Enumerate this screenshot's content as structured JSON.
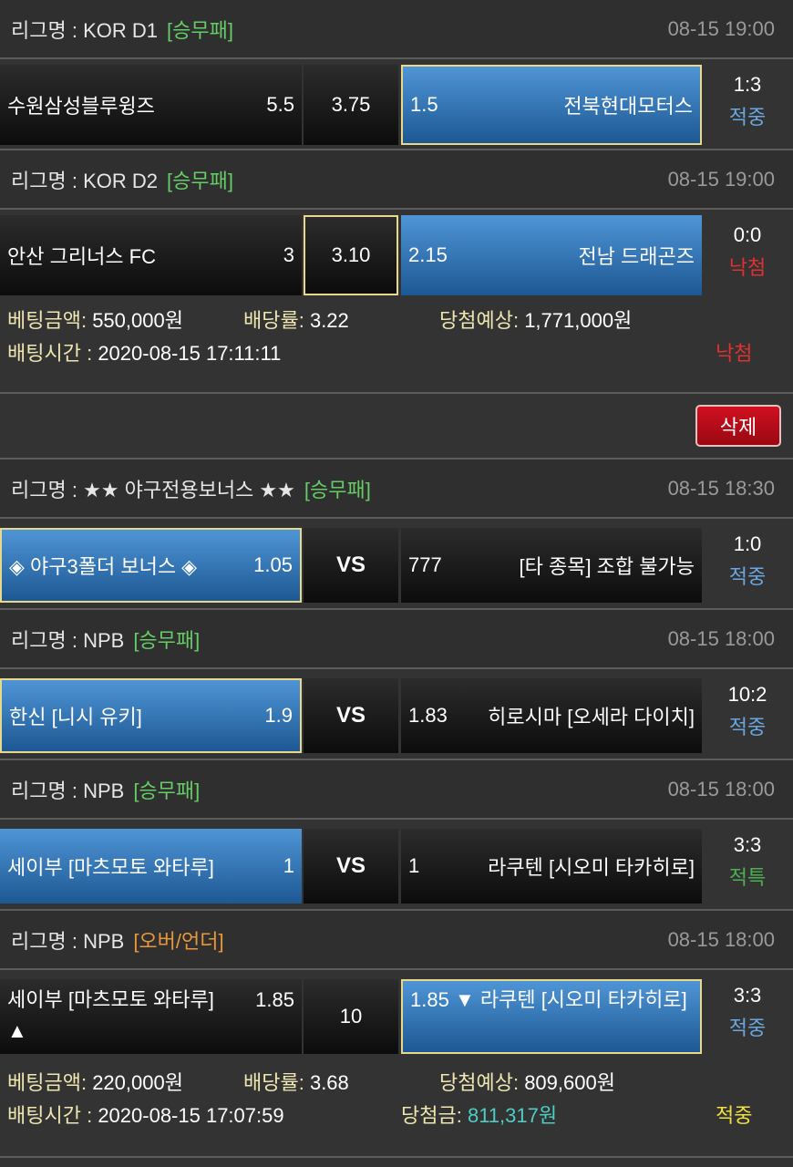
{
  "colors": {
    "bet_type": "#66cc66",
    "overunder": "#e8983a",
    "hit": "#6aa7e0",
    "miss": "#e03030",
    "special": "#4caf50",
    "win_amount": "#4ecdc4",
    "final_hit": "#f0e040"
  },
  "league_prefix": "리그명 : ",
  "slip1": {
    "games": [
      {
        "league": "KOR D1",
        "type": "[승무패]",
        "time": "08-15 19:00",
        "home": "수원삼성블루윙즈",
        "home_odds": "5.5",
        "mid": "3.75",
        "away_odds": "1.5",
        "away": "전북현대모터스",
        "score": "1:3",
        "result": "적중"
      },
      {
        "league": "KOR D2",
        "type": "[승무패]",
        "time": "08-15 19:00",
        "home": "안산 그리너스 FC",
        "home_odds": "3",
        "mid": "3.10",
        "away_odds": "2.15",
        "away": "전남 드래곤즈",
        "score": "0:0",
        "result": "낙첨"
      }
    ],
    "bet_amount_label": "베팅금액: ",
    "bet_amount": "550,000원",
    "odds_label": "배당률: ",
    "odds": "3.22",
    "expected_label": "당첨예상: ",
    "expected": "1,771,000원",
    "time_label": "배팅시간 : ",
    "time": "2020-08-15 17:11:11",
    "status": "낙첨"
  },
  "delete_label": "삭제",
  "slip2": {
    "games": [
      {
        "league": "★★ 야구전용보너스 ★★",
        "type": "[승무패]",
        "time": "08-15 18:30",
        "home": "◈ 야구3폴더 보너스 ◈",
        "home_odds": "1.05",
        "mid": "VS",
        "away_odds": "777",
        "away": "[타 종목] 조합 불가능",
        "score": "1:0",
        "result": "적중"
      },
      {
        "league": "NPB",
        "type": "[승무패]",
        "time": "08-15 18:00",
        "home": "한신 [니시 유키]",
        "home_odds": "1.9",
        "mid": "VS",
        "away_odds": "1.83",
        "away": "히로시마 [오세라 다이치]",
        "score": "10:2",
        "result": "적중"
      },
      {
        "league": "NPB",
        "type": "[승무패]",
        "time": "08-15 18:00",
        "home": "세이부 [마츠모토 와타루]",
        "home_odds": "1",
        "mid": "VS",
        "away_odds": "1",
        "away": "라쿠텐 [시오미 타카히로]",
        "score": "3:3",
        "result": "적특"
      },
      {
        "league": "NPB",
        "type": "[오버/언더]",
        "time": "08-15 18:00",
        "home": "세이부 [마츠모토 와타루]",
        "home_odds": "1.85",
        "home_arrow": "▲",
        "mid": "10",
        "away_odds": "1.85",
        "away_arrow": "▼",
        "away": "라쿠텐 [시오미 타카히로]",
        "score": "3:3",
        "result": "적중"
      }
    ],
    "bet_amount_label": "베팅금액: ",
    "bet_amount": "220,000원",
    "odds_label": "배당률: ",
    "odds": "3.68",
    "expected_label": "당첨예상: ",
    "expected": "809,600원",
    "time_label": "배팅시간 : ",
    "time": "2020-08-15 17:07:59",
    "win_label": "당첨금: ",
    "win": "811,317원",
    "status": "적중"
  }
}
